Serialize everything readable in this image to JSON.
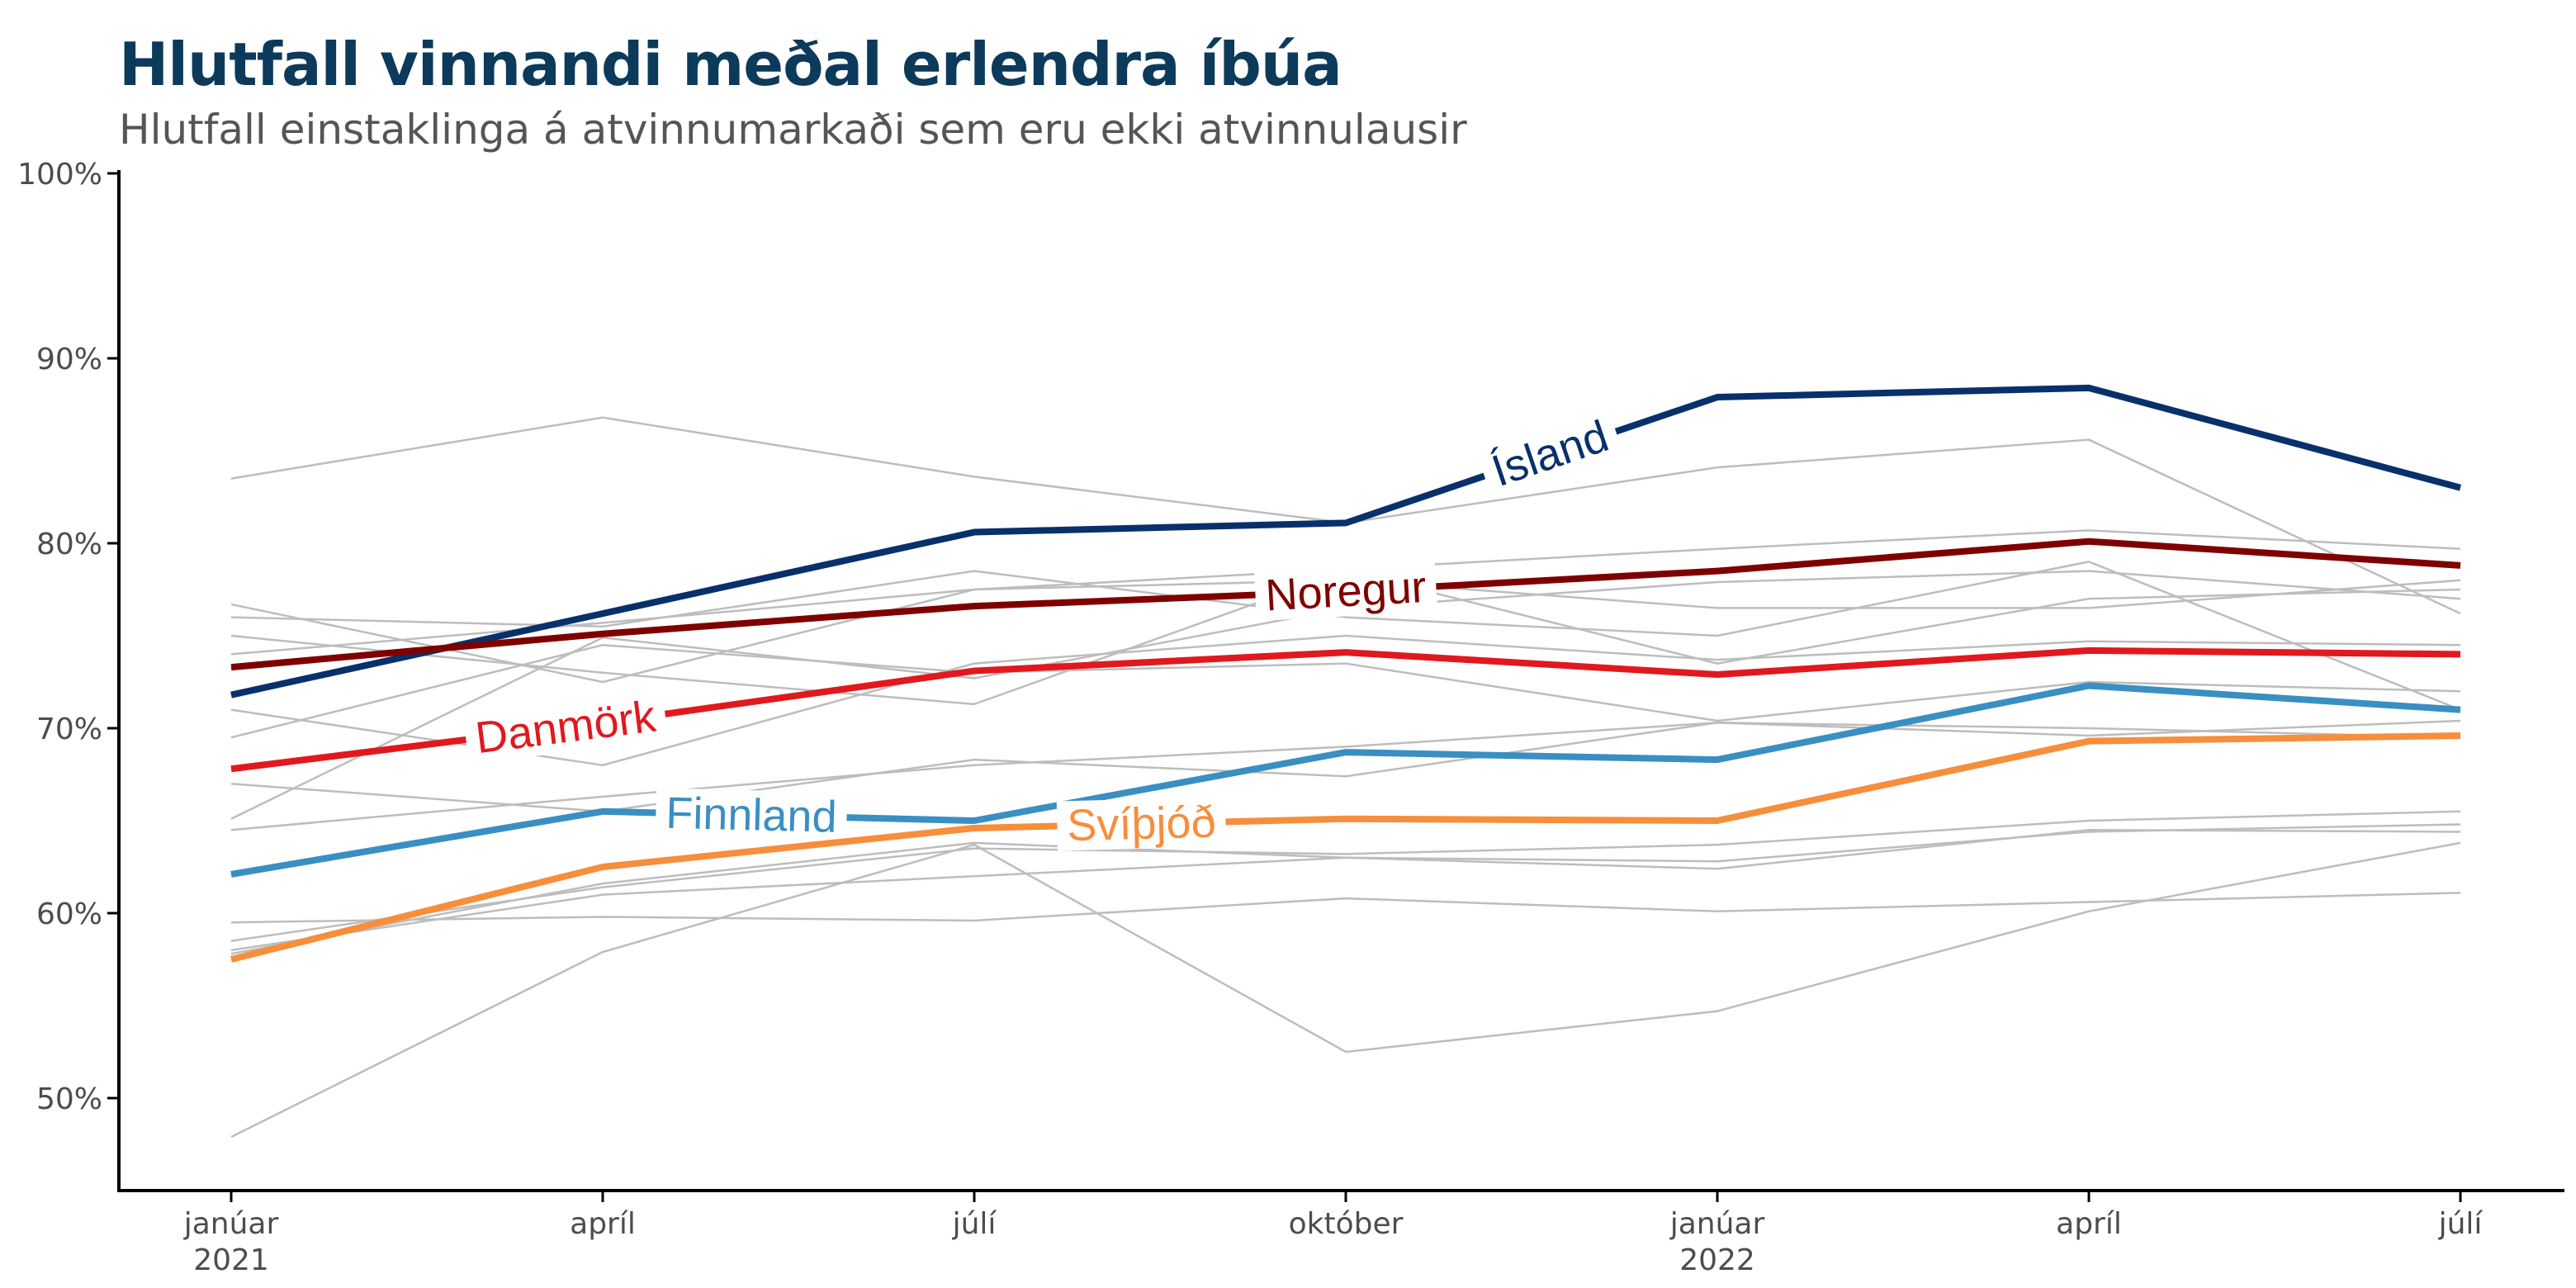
{
  "chart_data": {
    "type": "line",
    "title": "Hlutfall vinnandi meðal erlendra íbúa",
    "subtitle": "Hlutfall einstaklinga á atvinnumarkaði sem eru ekki atvinnulausir",
    "xlabel": "",
    "ylabel": "",
    "x_ticks": [
      {
        "label": "janúar",
        "year": "2021"
      },
      {
        "label": "apríl",
        "year": ""
      },
      {
        "label": "júlí",
        "year": ""
      },
      {
        "label": "október",
        "year": ""
      },
      {
        "label": "janúar",
        "year": "2022"
      },
      {
        "label": "apríl",
        "year": ""
      },
      {
        "label": "júlí",
        "year": ""
      }
    ],
    "y_ticks": [
      "50%",
      "60%",
      "70%",
      "80%",
      "90%",
      "100%"
    ],
    "y_tick_values": [
      50,
      60,
      70,
      80,
      90,
      100
    ],
    "ylim": [
      45,
      100
    ],
    "grid": false,
    "highlight_series": [
      {
        "name": "Ísland",
        "color": "#08306b",
        "values": [
          71.8,
          76.2,
          80.6,
          81.1,
          87.9,
          88.4,
          83.0
        ],
        "label_t": 3.55
      },
      {
        "name": "Noregur",
        "color": "#7f0000",
        "values": [
          73.3,
          75.1,
          76.6,
          77.4,
          78.5,
          80.1,
          78.8
        ],
        "label_t": 3.0
      },
      {
        "name": "Danmörk",
        "color": "#e0191f",
        "values": [
          67.8,
          70.3,
          73.1,
          74.1,
          72.9,
          74.2,
          74.0
        ],
        "label_t": 0.9
      },
      {
        "name": "Finnland",
        "color": "#3a8fc2",
        "values": [
          62.1,
          65.5,
          65.0,
          68.7,
          68.3,
          72.3,
          71.0
        ],
        "label_t": 1.4
      },
      {
        "name": "Svíþjóð",
        "color": "#f68e3c",
        "values": [
          57.5,
          62.5,
          64.6,
          65.1,
          65.0,
          69.3,
          69.6
        ],
        "label_t": 2.45
      }
    ],
    "background_series": [
      {
        "values": [
          83.5,
          86.8,
          83.6,
          81.1,
          84.1,
          85.6,
          76.2
        ]
      },
      {
        "values": [
          76.7,
          72.5,
          77.5,
          78.6,
          79.7,
          80.7,
          79.7
        ]
      },
      {
        "values": [
          76.0,
          75.5,
          78.5,
          76.0,
          75.0,
          79.0,
          71.0
        ]
      },
      {
        "values": [
          75.0,
          73.0,
          71.3,
          78.5,
          73.5,
          77.0,
          77.5
        ]
      },
      {
        "values": [
          74.0,
          75.7,
          77.5,
          78.0,
          76.5,
          76.5,
          78.0
        ]
      },
      {
        "values": [
          71.0,
          68.0,
          73.5,
          75.0,
          73.7,
          74.7,
          74.5
        ]
      },
      {
        "values": [
          69.5,
          74.5,
          73.0,
          73.5,
          70.4,
          72.5,
          72.0
        ]
      },
      {
        "values": [
          65.1,
          74.9,
          72.7,
          76.5,
          77.9,
          78.5,
          77.0
        ]
      },
      {
        "values": [
          67.0,
          65.5,
          68.3,
          67.4,
          70.3,
          69.6,
          70.4
        ]
      },
      {
        "values": [
          64.5,
          66.3,
          68.0,
          69.0,
          70.3,
          70.0,
          69.5
        ]
      },
      {
        "values": [
          59.5,
          59.8,
          59.6,
          60.8,
          60.1,
          60.6,
          61.1
        ]
      },
      {
        "values": [
          58.5,
          61.4,
          63.5,
          63.2,
          63.7,
          65.0,
          65.5
        ]
      },
      {
        "values": [
          58.0,
          61.0,
          62.0,
          63.0,
          62.8,
          64.4,
          64.8
        ]
      },
      {
        "values": [
          57.8,
          61.6,
          63.8,
          63.0,
          62.4,
          64.5,
          64.4
        ]
      },
      {
        "values": [
          47.9,
          57.9,
          63.7,
          52.5,
          54.7,
          60.1,
          63.8
        ]
      }
    ]
  },
  "colors": {
    "title": "#0c3a5b",
    "subtitle": "#555555",
    "axis": "#000000",
    "tick_text": "#4d4d4d",
    "background_line": "#bdbdbd"
  }
}
